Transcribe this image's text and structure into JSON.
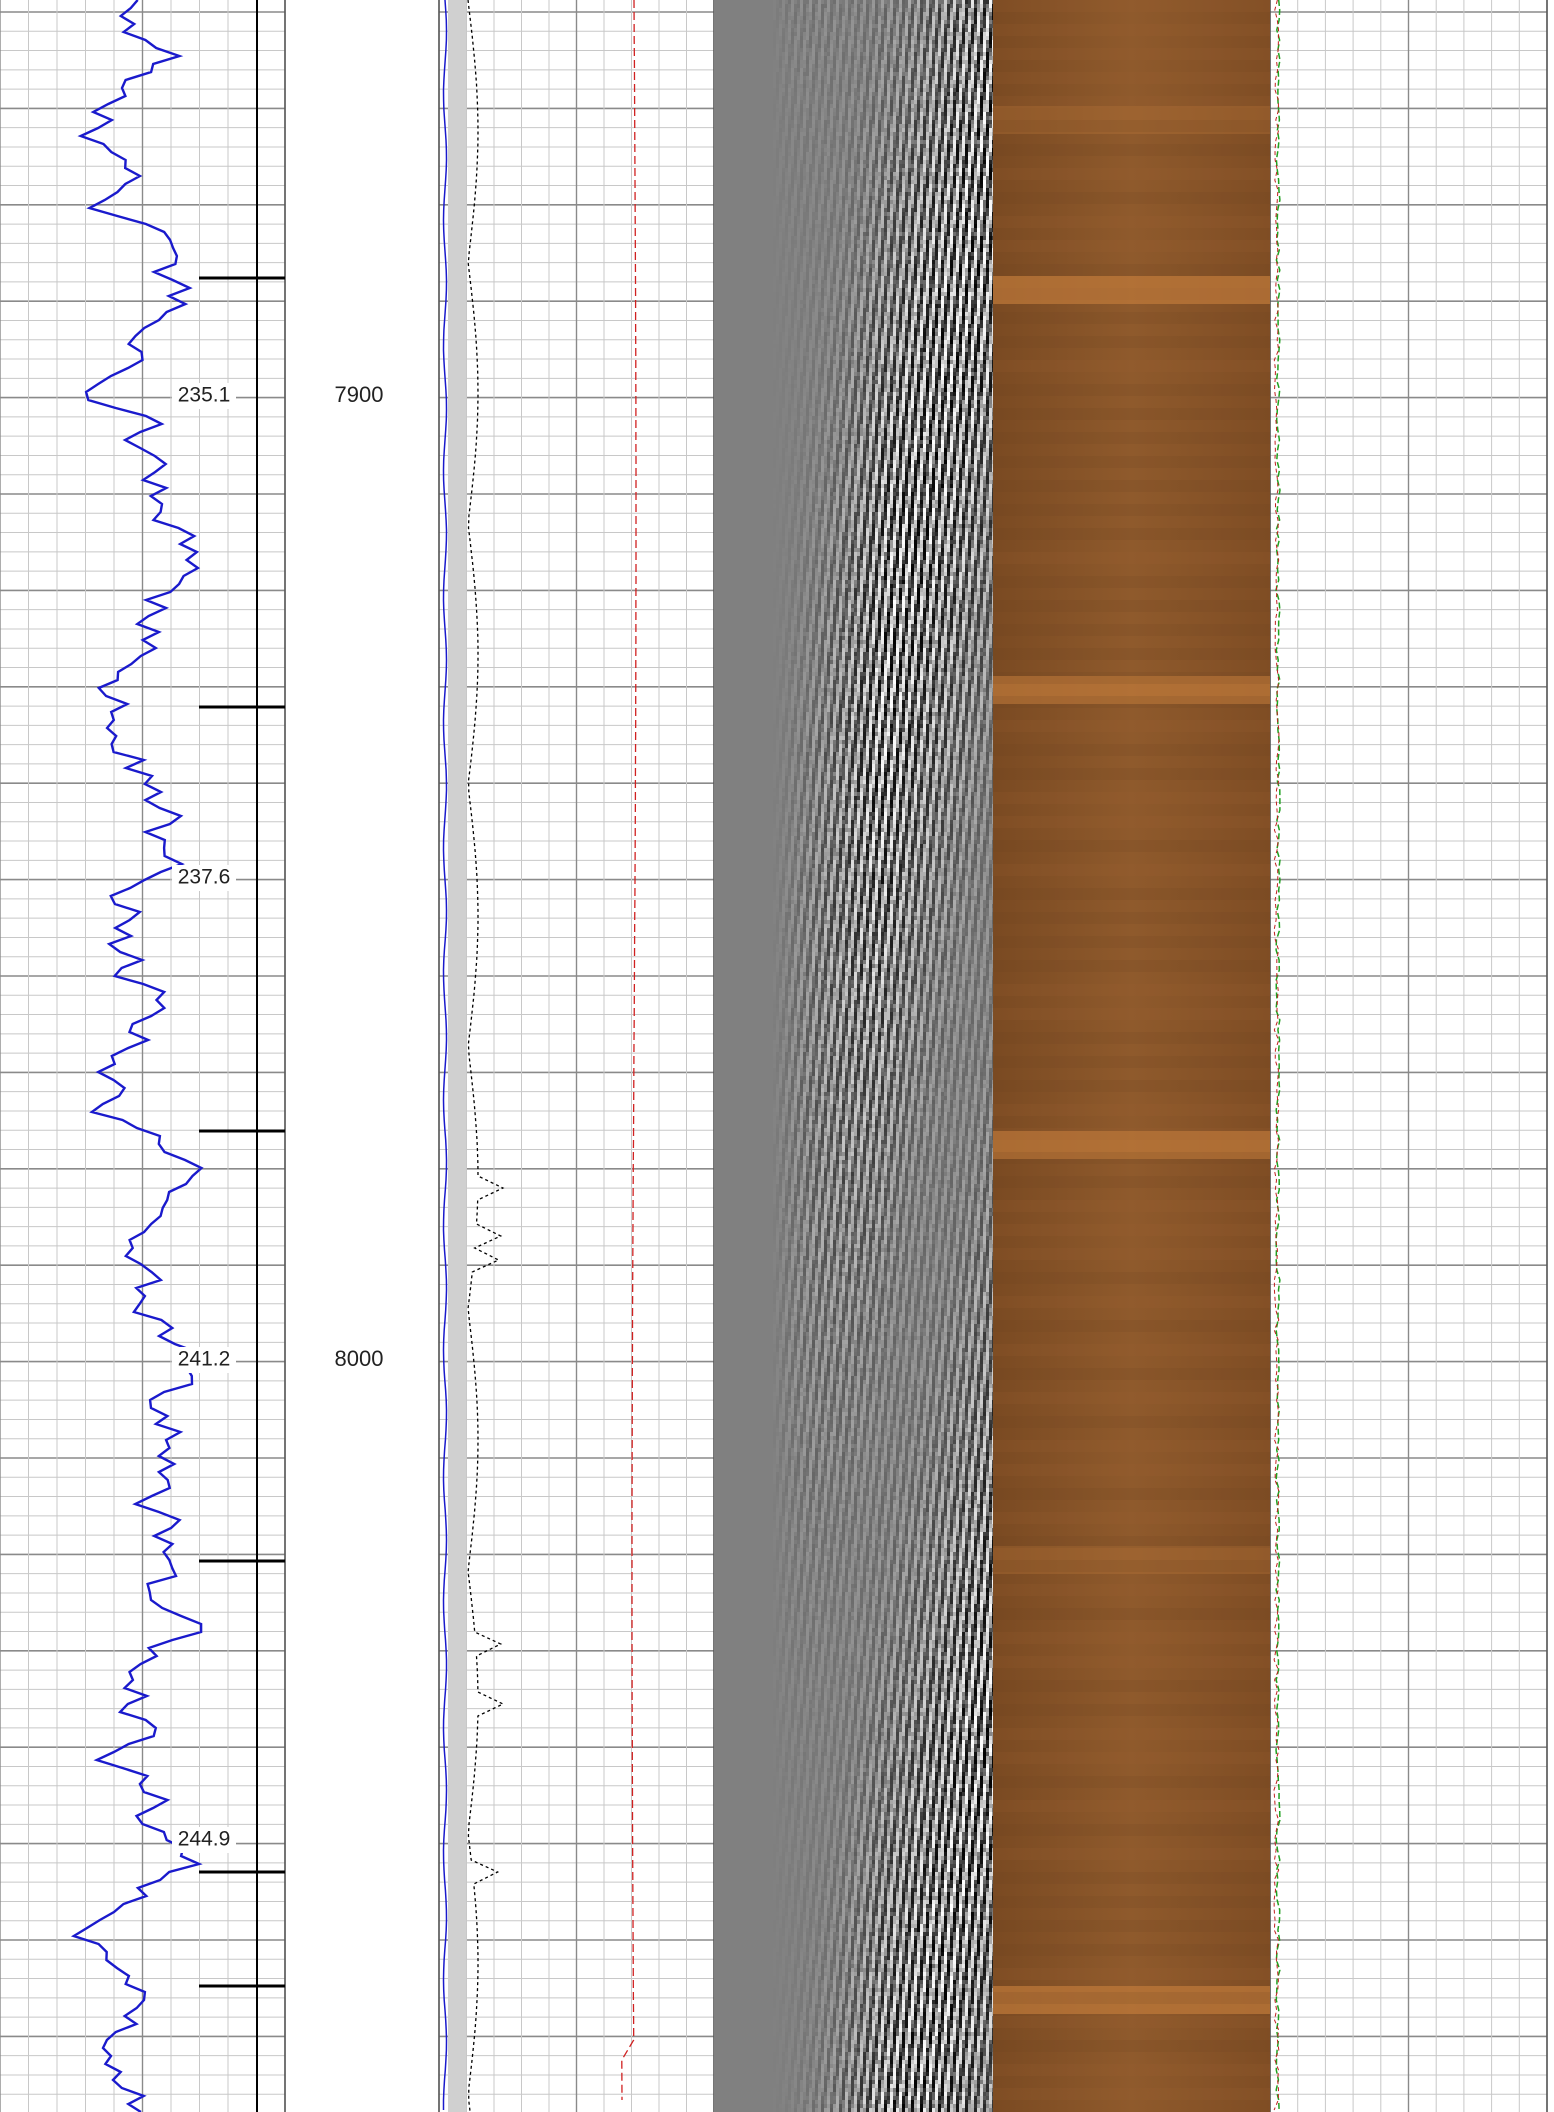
{
  "track_labels": [
    "235.1",
    "237.6",
    "241.2",
    "244.9"
  ],
  "depth_labels": [
    "7900",
    "8000"
  ]
}
